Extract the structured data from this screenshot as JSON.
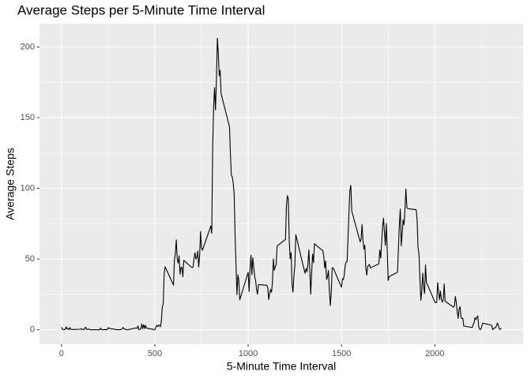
{
  "chart_data": {
    "type": "line",
    "title": "Average Steps per 5-Minute Time Interval",
    "x_label": "5-Minute Time Interval",
    "y_label": "Average Steps",
    "color": "#000000",
    "grid": true,
    "xlim": [
      -117.75,
      2472.75
    ],
    "ylim": [
      -10.31,
      216.48
    ],
    "xticks": [
      0,
      500,
      1000,
      1500,
      2000
    ],
    "yticks": [
      0,
      50,
      100,
      150,
      200
    ],
    "minor_xticks": [
      250,
      750,
      1250,
      1750,
      2250
    ],
    "minor_yticks": [
      25,
      75,
      125,
      175
    ],
    "x": [
      0,
      5,
      10,
      15,
      20,
      25,
      30,
      35,
      40,
      45,
      50,
      55,
      100,
      105,
      110,
      115,
      120,
      125,
      130,
      135,
      140,
      145,
      150,
      155,
      200,
      205,
      210,
      215,
      220,
      225,
      230,
      235,
      240,
      245,
      250,
      255,
      300,
      305,
      310,
      315,
      320,
      325,
      330,
      335,
      340,
      345,
      350,
      355,
      400,
      405,
      410,
      415,
      420,
      425,
      430,
      435,
      440,
      445,
      450,
      455,
      500,
      505,
      510,
      515,
      520,
      525,
      530,
      535,
      540,
      545,
      550,
      555,
      600,
      605,
      610,
      615,
      620,
      625,
      630,
      635,
      640,
      645,
      650,
      655,
      700,
      705,
      710,
      715,
      720,
      725,
      730,
      735,
      740,
      745,
      750,
      755,
      800,
      805,
      810,
      815,
      820,
      825,
      830,
      835,
      840,
      845,
      850,
      855,
      900,
      905,
      910,
      915,
      920,
      925,
      930,
      935,
      940,
      945,
      950,
      955,
      1000,
      1005,
      1010,
      1015,
      1020,
      1025,
      1030,
      1035,
      1040,
      1045,
      1050,
      1055,
      1100,
      1105,
      1110,
      1115,
      1120,
      1125,
      1130,
      1135,
      1140,
      1145,
      1150,
      1155,
      1200,
      1205,
      1210,
      1215,
      1220,
      1225,
      1230,
      1235,
      1240,
      1245,
      1250,
      1255,
      1300,
      1305,
      1310,
      1315,
      1320,
      1325,
      1330,
      1335,
      1340,
      1345,
      1350,
      1355,
      1400,
      1405,
      1410,
      1415,
      1420,
      1425,
      1430,
      1435,
      1440,
      1445,
      1450,
      1455,
      1500,
      1505,
      1510,
      1515,
      1520,
      1525,
      1530,
      1535,
      1540,
      1545,
      1550,
      1555,
      1600,
      1605,
      1610,
      1615,
      1620,
      1625,
      1630,
      1635,
      1640,
      1645,
      1650,
      1655,
      1700,
      1705,
      1710,
      1715,
      1720,
      1725,
      1730,
      1735,
      1740,
      1745,
      1750,
      1755,
      1800,
      1805,
      1810,
      1815,
      1820,
      1825,
      1830,
      1835,
      1840,
      1845,
      1850,
      1855,
      1900,
      1905,
      1910,
      1915,
      1920,
      1925,
      1930,
      1935,
      1940,
      1945,
      1950,
      1955,
      2000,
      2005,
      2010,
      2015,
      2020,
      2025,
      2030,
      2035,
      2040,
      2045,
      2050,
      2055,
      2100,
      2105,
      2110,
      2115,
      2120,
      2125,
      2130,
      2135,
      2140,
      2145,
      2150,
      2155,
      2200,
      2205,
      2210,
      2215,
      2220,
      2225,
      2230,
      2235,
      2240,
      2245,
      2250,
      2255,
      2300,
      2305,
      2310,
      2315,
      2320,
      2325,
      2330,
      2335,
      2340,
      2345,
      2350,
      2355
    ],
    "series": [
      {
        "values": [
          1.7,
          0.3,
          0.1,
          0.2,
          0.1,
          2.1,
          0.5,
          0.9,
          0,
          1.5,
          0.3,
          0.1,
          0.3,
          0.7,
          0.2,
          0.3,
          0,
          1.1,
          1.8,
          0.2,
          0.2,
          0.4,
          0.3,
          0,
          0,
          0,
          1.1,
          0,
          0,
          0.1,
          0,
          0.2,
          0,
          0,
          1.5,
          0.9,
          0,
          0,
          0,
          0,
          0.2,
          0.6,
          1.6,
          0.6,
          0.5,
          0.1,
          0,
          0,
          1.2,
          0.9,
          2.6,
          0,
          0.3,
          0.4,
          4.1,
          0.7,
          3.5,
          0.8,
          3.1,
          1.1,
          0,
          1.6,
          3.0,
          2.2,
          3.3,
          3.0,
          2.1,
          6.1,
          16.0,
          18.3,
          39.5,
          44.5,
          31.5,
          49.3,
          53.8,
          63.5,
          50.0,
          47.1,
          52.2,
          39.3,
          44.0,
          44.2,
          37.4,
          49.0,
          43.8,
          44.4,
          50.5,
          54.5,
          49.9,
          51.0,
          55.7,
          44.3,
          52.3,
          69.5,
          57.8,
          56.2,
          73.4,
          68.2,
          129.4,
          157.5,
          171.2,
          155.4,
          177.3,
          206.2,
          195.9,
          179.6,
          183.4,
          167.0,
          143.5,
          124.0,
          109.1,
          108.1,
          103.7,
          95.97,
          66.2,
          45.2,
          24.8,
          38.8,
          35.0,
          21.1,
          40.6,
          26.98,
          42.4,
          52.7,
          38.9,
          50.8,
          44.3,
          37.4,
          34.7,
          28.3,
          25.1,
          31.9,
          31.4,
          29.7,
          21.3,
          25.5,
          28.4,
          26.5,
          33.4,
          49.98,
          42.0,
          44.6,
          46.0,
          59.2,
          63.9,
          87.7,
          94.8,
          92.8,
          63.4,
          50.2,
          54.5,
          32.4,
          26.5,
          37.7,
          45.1,
          67.3,
          42.3,
          39.9,
          43.3,
          40.98,
          46.2,
          56.4,
          42.8,
          25.1,
          39.96,
          53.5,
          47.3,
          60.8,
          55.8,
          51.96,
          43.6,
          48.7,
          35.5,
          37.5,
          41.8,
          27.5,
          17.1,
          26.1,
          43.6,
          43.8,
          30.0,
          36.1,
          35.5,
          38.8,
          45.96,
          47.8,
          48.1,
          65.3,
          82.9,
          98.7,
          102.1,
          83.96,
          62.1,
          64.1,
          74.5,
          63.2,
          56.9,
          59.8,
          43.9,
          38.6,
          44.7,
          45.5,
          46.2,
          43.7,
          46.6,
          56.3,
          50.7,
          61.2,
          72.7,
          78.9,
          68.9,
          59.7,
          75.1,
          56.5,
          34.8,
          37.5,
          40.7,
          58.0,
          74.7,
          85.3,
          59.3,
          67.8,
          77.7,
          74.2,
          85.3,
          99.5,
          86.6,
          85.6,
          84.9,
          77.8,
          58.0,
          53.4,
          36.3,
          20.7,
          27.4,
          40.0,
          30.2,
          25.5,
          45.7,
          33.5,
          19.6,
          19.0,
          19.3,
          33.3,
          26.8,
          21.2,
          27.3,
          21.3,
          19.5,
          21.3,
          32.3,
          20.2,
          15.9,
          17.2,
          23.5,
          19.2,
          12.5,
          8.0,
          14.7,
          16.3,
          8.7,
          7.8,
          8.1,
          2.6,
          1.5,
          3.7,
          4.8,
          8.5,
          7.1,
          8.7,
          9.8,
          2.2,
          0.3,
          0.1,
          1.6,
          4.6,
          3.3,
          2.8,
          0,
          0.8,
          1.0,
          1.6,
          2.6,
          4.7,
          3.3,
          0.6,
          0.2,
          1.1
        ]
      }
    ]
  }
}
